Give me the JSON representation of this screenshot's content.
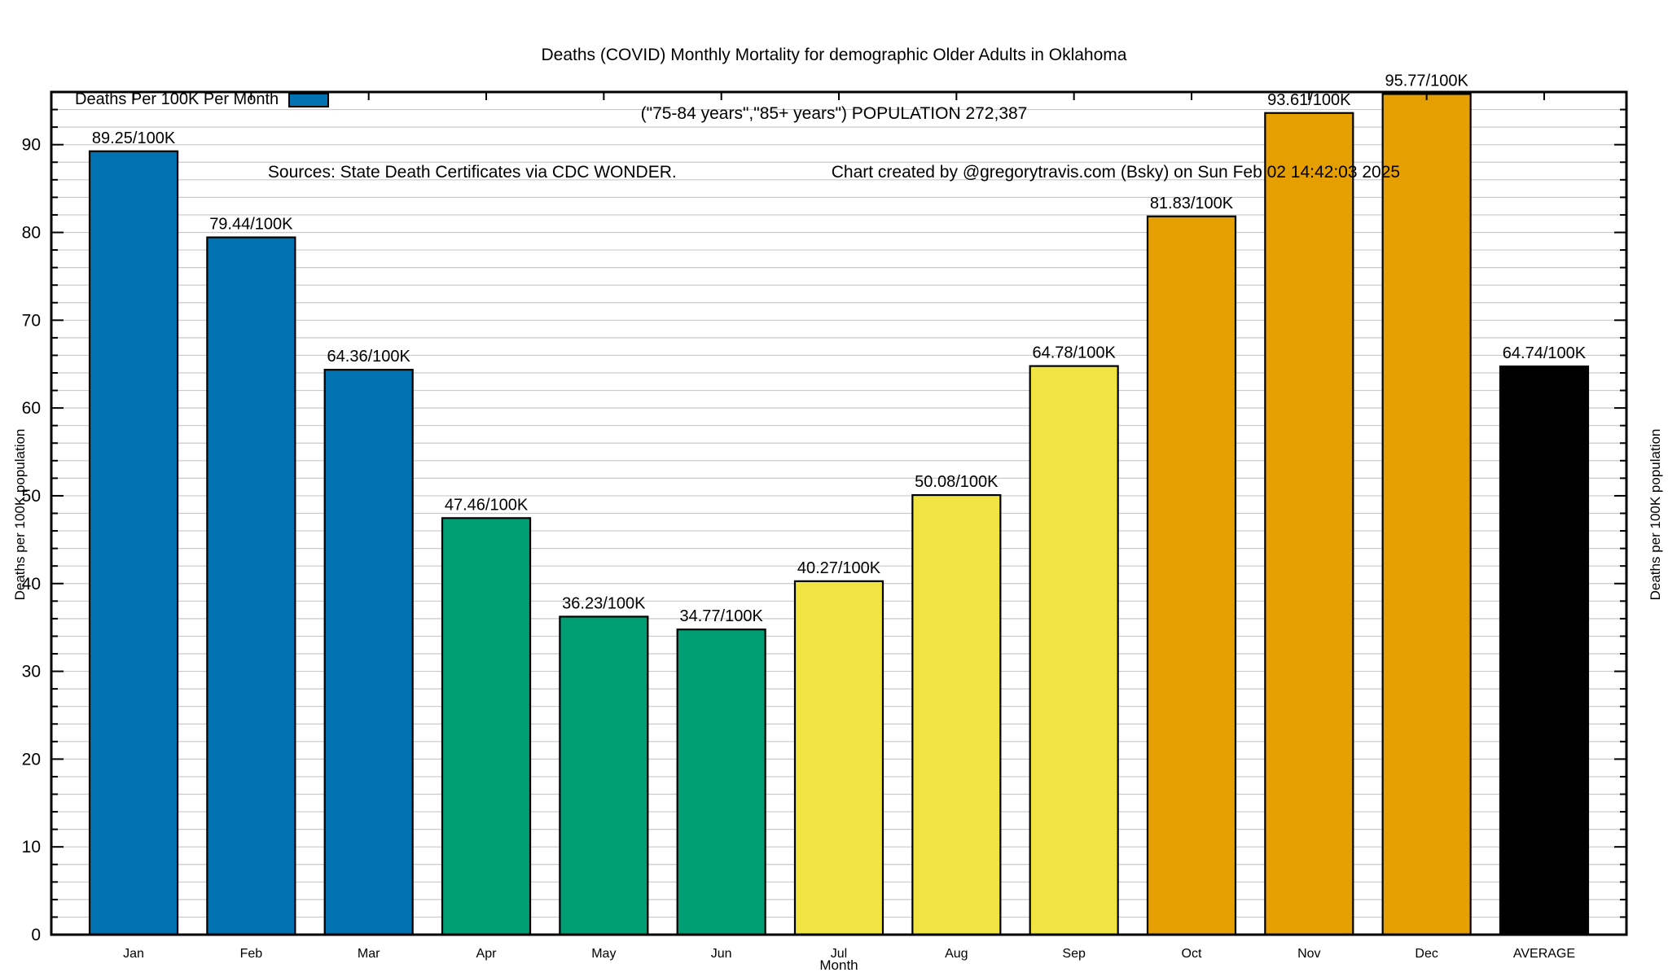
{
  "header": {
    "line1": "Deaths (COVID) Monthly Mortality for demographic Older Adults in Oklahoma",
    "line2": "(\"75-84 years\",\"85+ years\") POPULATION 272,387",
    "line3_left": "Sources: State Death Certificates via CDC WONDER.",
    "line3_right": "Chart created by @gregorytravis.com (Bsky) on Sun Feb 02 14:42:03 2025"
  },
  "legend": {
    "label": "Deaths Per 100K Per Month",
    "swatch_color": "#0072B2"
  },
  "axes": {
    "y_left_label": "Deaths per 100K population",
    "y_right_label": "Deaths per 100K population",
    "x_label": "Month",
    "y_major_ticks": [
      0,
      10,
      20,
      30,
      40,
      50,
      60,
      70,
      80,
      90
    ],
    "y_minor_step": 2,
    "y_max": 96
  },
  "palette": {
    "blue": "#0072B2",
    "green": "#009E73",
    "yellow": "#F0E442",
    "orange": "#E69F00",
    "black": "#000000",
    "grid": "#c9c9c9"
  },
  "chart_data": {
    "type": "bar",
    "title": "Deaths (COVID) Monthly Mortality for demographic Older Adults in Oklahoma",
    "subtitle": "(\"75-84 years\",\"85+ years\") POPULATION 272,387",
    "categories": [
      "Jan",
      "Feb",
      "Mar",
      "Apr",
      "May",
      "Jun",
      "Jul",
      "Aug",
      "Sep",
      "Oct",
      "Nov",
      "Dec",
      "AVERAGE"
    ],
    "values": [
      89.25,
      79.44,
      64.36,
      47.46,
      36.23,
      34.77,
      40.27,
      50.08,
      64.78,
      81.83,
      93.61,
      95.77,
      64.74
    ],
    "bar_labels": [
      "89.25/100K",
      "79.44/100K",
      "64.36/100K",
      "47.46/100K",
      "36.23/100K",
      "34.77/100K",
      "40.27/100K",
      "50.08/100K",
      "64.78/100K",
      "81.83/100K",
      "93.61/100K",
      "95.77/100K",
      "64.74/100K"
    ],
    "bar_colors": [
      "#0072B2",
      "#0072B2",
      "#0072B2",
      "#009E73",
      "#009E73",
      "#009E73",
      "#F0E442",
      "#F0E442",
      "#F0E442",
      "#E69F00",
      "#E69F00",
      "#E69F00",
      "#000000"
    ],
    "xlabel": "Month",
    "ylabel": "Deaths per 100K population",
    "ylim": [
      0,
      96
    ],
    "grid": "horizontal lines every 2 units",
    "legend_entry": "Deaths Per 100K Per Month",
    "legend_position": "top-left-inside"
  }
}
